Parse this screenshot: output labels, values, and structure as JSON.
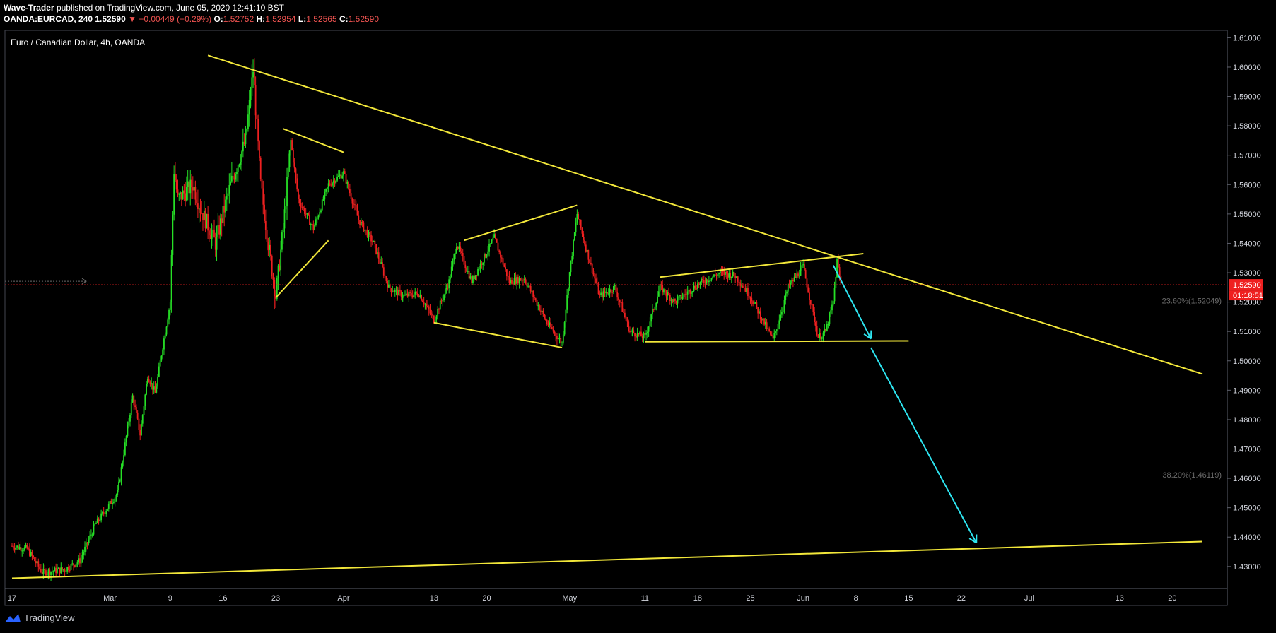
{
  "header": {
    "author": "Wave-Trader",
    "published_text": "published on TradingView.com, June 05, 2020 12:41:10 BST",
    "symbol": "OANDA:EURCAD, 240",
    "last": "1.52590",
    "change_arrow": "▼",
    "change": "−0.00449 (−0.29%)",
    "o_label": "O:",
    "o_value": "1.52752",
    "h_label": "H:",
    "h_value": "1.52954",
    "l_label": "L:",
    "l_value": "1.52565",
    "c_label": "C:",
    "c_value": "1.52590"
  },
  "footer": {
    "brand": "TradingView"
  },
  "colors": {
    "background": "#000000",
    "up": "#26e026",
    "down": "#ef2020",
    "trendline": "#f2e73a",
    "projection": "#2ee6f2",
    "price_line": "#ef2020",
    "fib_text": "#6b6b6b"
  },
  "chart_data": {
    "type": "candlestick",
    "title": "Euro / Canadian Dollar, 4h, OANDA",
    "y_axis": {
      "ylim": [
        1.4225,
        1.6125
      ],
      "ticks": [
        "1.61000",
        "1.60000",
        "1.59000",
        "1.58000",
        "1.57000",
        "1.56000",
        "1.55000",
        "1.54000",
        "1.53000",
        "1.52000",
        "1.51000",
        "1.50000",
        "1.49000",
        "1.48000",
        "1.47000",
        "1.46000",
        "1.45000",
        "1.44000",
        "1.43000"
      ]
    },
    "x_axis": {
      "start_day": "Feb 17",
      "end_day": "Jul 24",
      "ticks": [
        {
          "label": "17",
          "day": "Feb 17"
        },
        {
          "label": "Mar",
          "day": "Mar 1"
        },
        {
          "label": "9",
          "day": "Mar 9"
        },
        {
          "label": "16",
          "day": "Mar 16"
        },
        {
          "label": "23",
          "day": "Mar 23"
        },
        {
          "label": "Apr",
          "day": "Apr 1"
        },
        {
          "label": "13",
          "day": "Apr 13"
        },
        {
          "label": "20",
          "day": "Apr 20"
        },
        {
          "label": "May",
          "day": "May 1"
        },
        {
          "label": "11",
          "day": "May 11"
        },
        {
          "label": "18",
          "day": "May 18"
        },
        {
          "label": "25",
          "day": "May 25"
        },
        {
          "label": "Jun",
          "day": "Jun 1"
        },
        {
          "label": "8",
          "day": "Jun 8"
        },
        {
          "label": "15",
          "day": "Jun 15"
        },
        {
          "label": "22",
          "day": "Jun 22"
        },
        {
          "label": "Jul",
          "day": "Jul 1"
        },
        {
          "label": "13",
          "day": "Jul 13"
        },
        {
          "label": "20",
          "day": "Jul 20"
        }
      ]
    },
    "price_path": [
      [
        "Feb 17",
        1.437
      ],
      [
        "Feb 19",
        1.436
      ],
      [
        "Feb 21",
        1.428
      ],
      [
        "Feb 24",
        1.429
      ],
      [
        "Feb 26",
        1.432
      ],
      [
        "Feb 28",
        1.444
      ],
      [
        "Mar 2",
        1.455
      ],
      [
        "Mar 4",
        1.488
      ],
      [
        "Mar 5",
        1.475
      ],
      [
        "Mar 6",
        1.495
      ],
      [
        "Mar 7",
        1.489
      ],
      [
        "Mar 8",
        1.505
      ],
      [
        "Mar 9",
        1.52
      ],
      [
        "Mar 9.5",
        1.565
      ],
      [
        "Mar 10",
        1.555
      ],
      [
        "Mar 12",
        1.56
      ],
      [
        "Mar 13",
        1.552
      ],
      [
        "Mar 15",
        1.54
      ],
      [
        "Mar 17",
        1.56
      ],
      [
        "Mar 19",
        1.575
      ],
      [
        "Mar 20",
        1.599
      ],
      [
        "Mar 21",
        1.56
      ],
      [
        "Mar 22",
        1.54
      ],
      [
        "Mar 23",
        1.522
      ],
      [
        "Mar 24",
        1.545
      ],
      [
        "Mar 25",
        1.575
      ],
      [
        "Mar 26",
        1.555
      ],
      [
        "Mar 28",
        1.545
      ],
      [
        "Mar 30",
        1.56
      ],
      [
        "Apr 1",
        1.564
      ],
      [
        "Apr 3",
        1.548
      ],
      [
        "Apr 5",
        1.54
      ],
      [
        "Apr 7",
        1.525
      ],
      [
        "Apr 9",
        1.522
      ],
      [
        "Apr 11",
        1.523
      ],
      [
        "Apr 13",
        1.514
      ],
      [
        "Apr 15",
        1.527
      ],
      [
        "Apr 16",
        1.54
      ],
      [
        "Apr 18",
        1.527
      ],
      [
        "Apr 21",
        1.542
      ],
      [
        "Apr 23",
        1.527
      ],
      [
        "Apr 25",
        1.528
      ],
      [
        "Apr 28",
        1.513
      ],
      [
        "Apr 30",
        1.506
      ],
      [
        "May 1",
        1.53
      ],
      [
        "May 2",
        1.55
      ],
      [
        "May 3",
        1.54
      ],
      [
        "May 5",
        1.522
      ],
      [
        "May 7",
        1.525
      ],
      [
        "May 9",
        1.51
      ],
      [
        "May 11",
        1.508
      ],
      [
        "May 13",
        1.525
      ],
      [
        "May 15",
        1.52
      ],
      [
        "May 18",
        1.526
      ],
      [
        "May 21",
        1.53
      ],
      [
        "May 23",
        1.529
      ],
      [
        "May 25",
        1.522
      ],
      [
        "May 28",
        1.507
      ],
      [
        "May 30",
        1.525
      ],
      [
        "Jun 1",
        1.532
      ],
      [
        "Jun 3",
        1.508
      ],
      [
        "Jun 4",
        1.51
      ],
      [
        "Jun 5",
        1.52
      ],
      [
        "Jun 5.5",
        1.534
      ],
      [
        "Jun 6",
        1.526
      ]
    ],
    "series_note": "",
    "trendlines": [
      {
        "from": [
          "Mar 14",
          1.604
        ],
        "to": [
          "Jul 24",
          1.4955
        ]
      },
      {
        "from": [
          "Feb 17",
          1.426
        ],
        "to": [
          "Jul 24",
          1.4385
        ]
      },
      {
        "from": [
          "Mar 24",
          1.579
        ],
        "to": [
          "Apr 1",
          1.571
        ]
      },
      {
        "from": [
          "Mar 23",
          1.5215
        ],
        "to": [
          "Mar 30",
          1.541
        ]
      },
      {
        "from": [
          "Apr 17",
          1.541
        ],
        "to": [
          "May 2",
          1.553
        ]
      },
      {
        "from": [
          "Apr 13",
          1.513
        ],
        "to": [
          "Apr 30",
          1.5045
        ]
      },
      {
        "from": [
          "May 13",
          1.5285
        ],
        "to": [
          "Jun 9",
          1.5365
        ]
      },
      {
        "from": [
          "May 11",
          1.5065
        ],
        "to": [
          "Jun 15",
          1.5068
        ]
      }
    ],
    "projections": [
      {
        "from": [
          "Jun 5",
          1.5325
        ],
        "to": [
          "Jun 10",
          1.5075
        ]
      },
      {
        "from": [
          "Jun 10",
          1.5045
        ],
        "to": [
          "Jun 24",
          1.438
        ]
      }
    ],
    "fib_levels": [
      {
        "label": "23.60%(1.52049)",
        "value": 1.52049
      },
      {
        "label": "38.20%(1.46119)",
        "value": 1.46119
      }
    ],
    "last_price": {
      "value": 1.5259,
      "label": "1.52590",
      "timer": "01:18:51"
    },
    "hidden_tick_labels": [],
    "extra_axis_label": "1.52000"
  }
}
